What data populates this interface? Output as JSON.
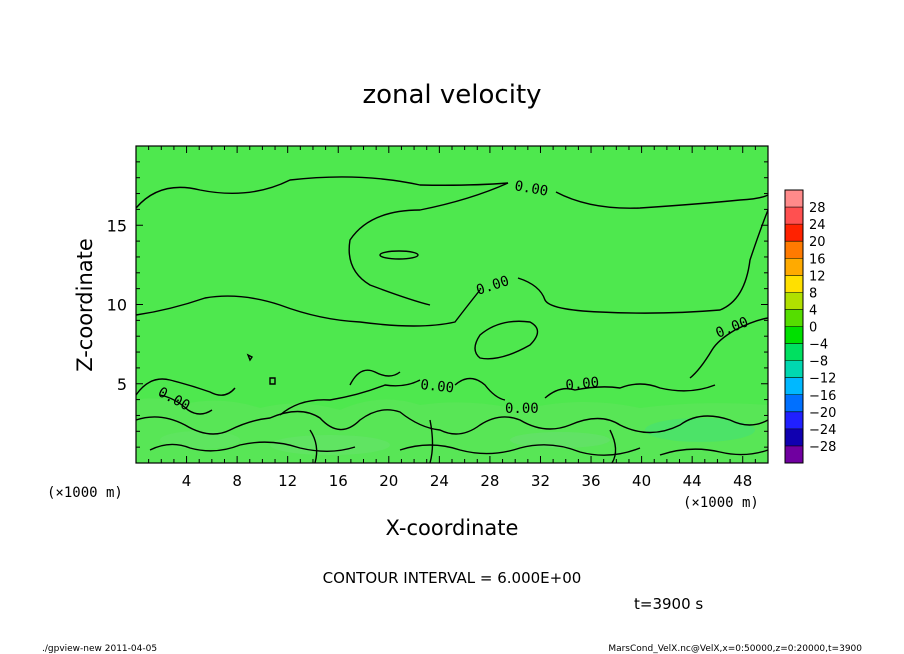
{
  "chart_data": {
    "type": "heatmap",
    "title": "zonal velocity",
    "xlabel": "X-coordinate",
    "ylabel": "Z-coordinate",
    "x_unit_left": "(×1000 m)",
    "x_unit_right": "(×1000 m)",
    "xlim": [
      0,
      50
    ],
    "ylim": [
      0,
      20
    ],
    "x_ticks": [
      4,
      8,
      12,
      16,
      20,
      24,
      28,
      32,
      36,
      40,
      44,
      48
    ],
    "y_ticks": [
      5,
      10,
      15
    ],
    "contour_interval_label": "CONTOUR INTERVAL = 6.000E+00",
    "time_label": "t=3900 s",
    "contour_labels": [
      "0.00",
      "0.00",
      "0.00",
      "0.00",
      "0.00",
      "0.00",
      "0.00"
    ],
    "colorbar": {
      "levels": [
        "28",
        "24",
        "20",
        "16",
        "12",
        "8",
        "4",
        "0",
        "−4",
        "−8",
        "−12",
        "−16",
        "−20",
        "−24",
        "−28"
      ],
      "colors": [
        "#ff8a8a",
        "#ff5050",
        "#ff2200",
        "#ff7a00",
        "#ffaa00",
        "#ffe000",
        "#b0e000",
        "#55dd00",
        "#00e000",
        "#00e060",
        "#00d8b0",
        "#00b8ff",
        "#0070ff",
        "#2020ff",
        "#1000b0",
        "#7000a0"
      ],
      "background_color": "#4ee84e"
    }
  },
  "footer": {
    "left": "./gpview-new   2011-04-05",
    "right": "MarsCond_VelX.nc@VelX,x=0:50000,z=0:20000,t=3900"
  }
}
